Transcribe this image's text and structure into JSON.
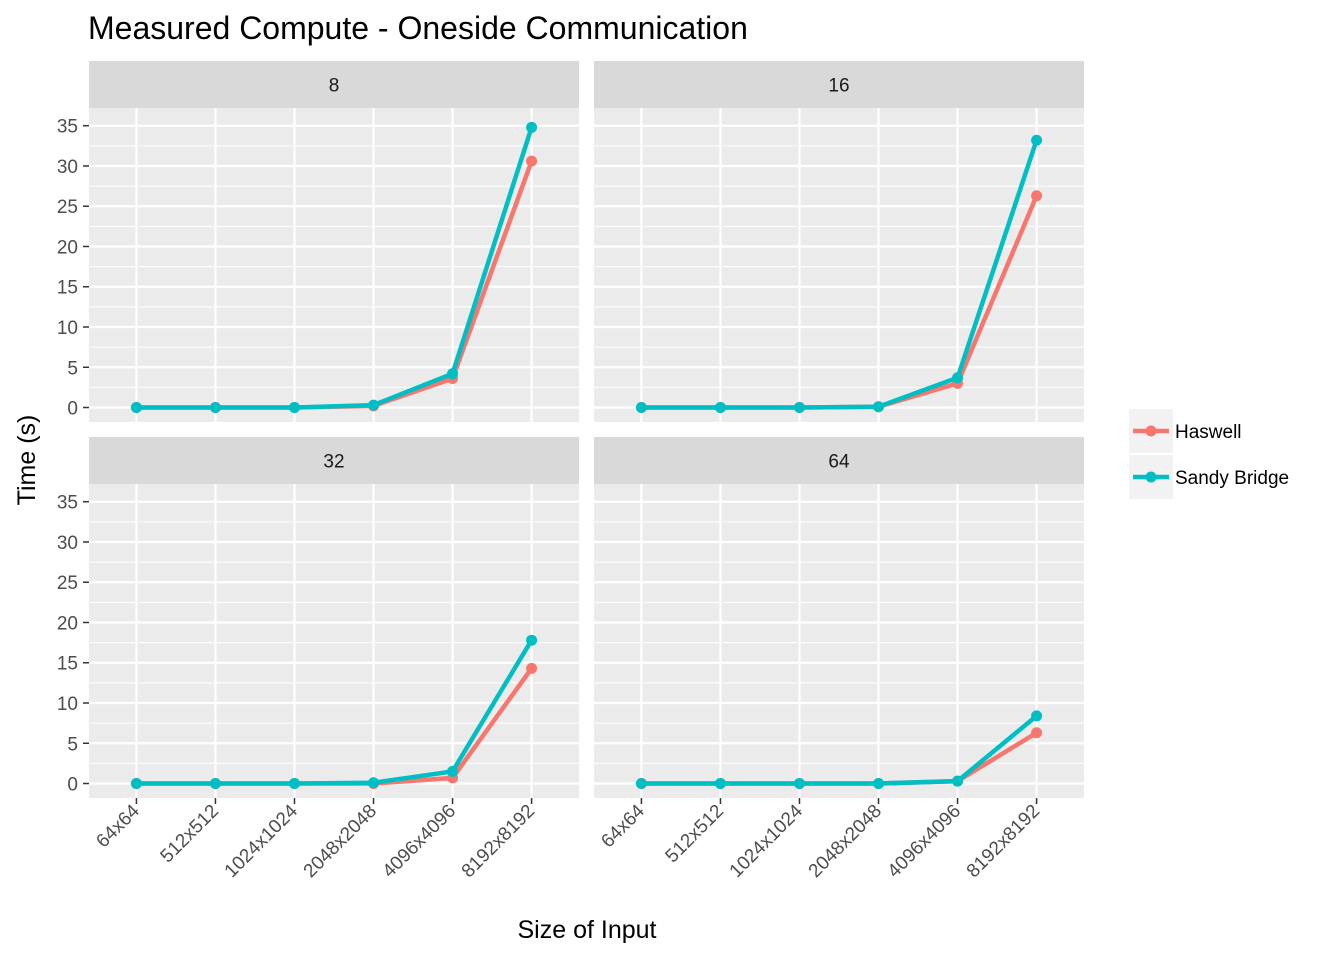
{
  "chart_data": {
    "type": "line",
    "title": "Measured Compute - Oneside Communication",
    "xlabel": "Size of Input",
    "ylabel": "Time (s)",
    "categories": [
      "64x64",
      "512x512",
      "1024x1024",
      "2048x2048",
      "4096x4096",
      "8192x8192"
    ],
    "y_ticks": [
      "0",
      "5",
      "10",
      "15",
      "20",
      "25",
      "30",
      "35"
    ],
    "ylim": [
      -1.8,
      37.2
    ],
    "grid": true,
    "legend_position": "right",
    "series_colors": {
      "Haswell": "#F8766D",
      "Sandy Bridge": "#00BFC4"
    },
    "panels": [
      {
        "strip": "8",
        "series": [
          {
            "name": "Haswell",
            "values": [
              0,
              0,
              0,
              0.2,
              3.6,
              30.6
            ]
          },
          {
            "name": "Sandy Bridge",
            "values": [
              0,
              0,
              0,
              0.3,
              4.2,
              34.8
            ]
          }
        ]
      },
      {
        "strip": "16",
        "series": [
          {
            "name": "Haswell",
            "values": [
              0,
              0,
              0,
              0.1,
              3.0,
              26.3
            ]
          },
          {
            "name": "Sandy Bridge",
            "values": [
              0,
              0,
              0,
              0.1,
              3.7,
              33.2
            ]
          }
        ]
      },
      {
        "strip": "32",
        "series": [
          {
            "name": "Haswell",
            "values": [
              0,
              0,
              0,
              0,
              0.7,
              14.3
            ]
          },
          {
            "name": "Sandy Bridge",
            "values": [
              0,
              0,
              0,
              0.1,
              1.5,
              17.8
            ]
          }
        ]
      },
      {
        "strip": "64",
        "series": [
          {
            "name": "Haswell",
            "values": [
              0,
              0,
              0,
              0,
              0.3,
              6.3
            ]
          },
          {
            "name": "Sandy Bridge",
            "values": [
              0,
              0,
              0,
              0,
              0.3,
              8.4
            ]
          }
        ]
      }
    ],
    "legend": [
      "Haswell",
      "Sandy Bridge"
    ]
  }
}
